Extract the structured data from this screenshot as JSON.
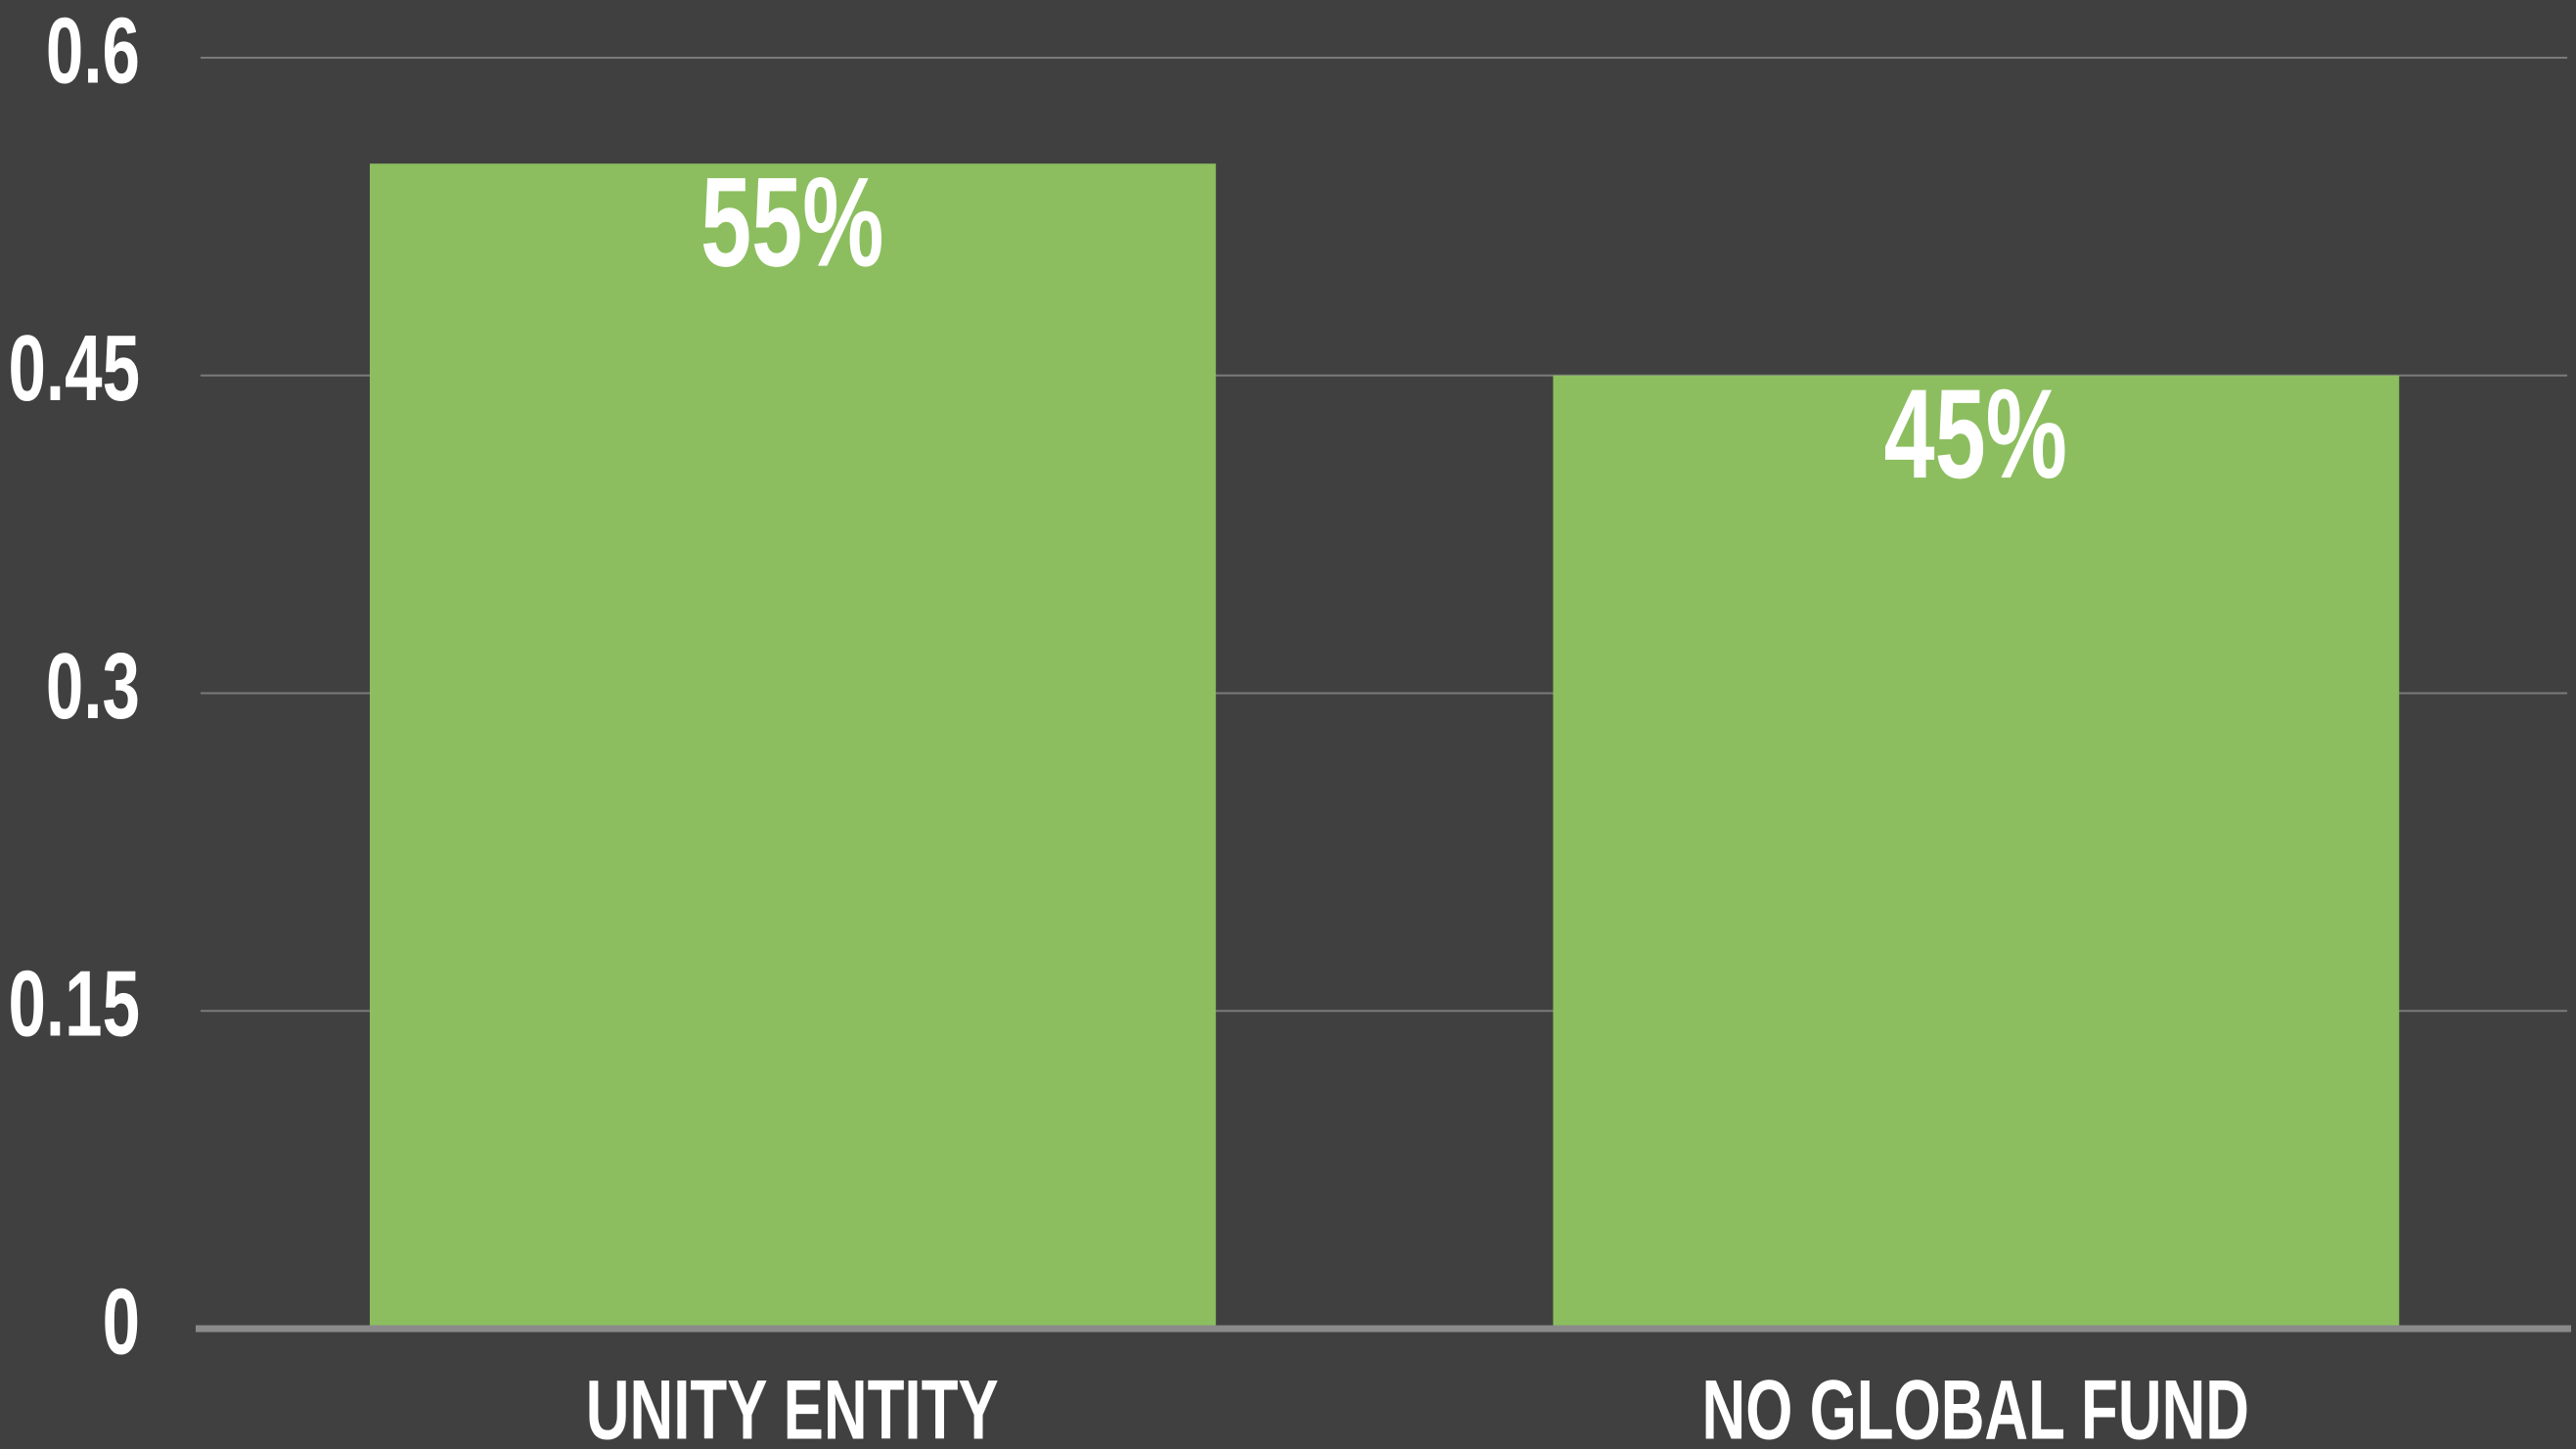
{
  "chart_data": {
    "type": "bar",
    "categories": [
      "UNITY ENTITY",
      "NO GLOBAL FUND"
    ],
    "values": [
      0.55,
      0.45
    ],
    "value_labels": [
      "55%",
      "45%"
    ],
    "color": "#8cbe5f",
    "ylim": [
      0,
      0.6
    ],
    "yticks": [
      0,
      0.15,
      0.3,
      0.45,
      0.6
    ],
    "grid": true
  }
}
